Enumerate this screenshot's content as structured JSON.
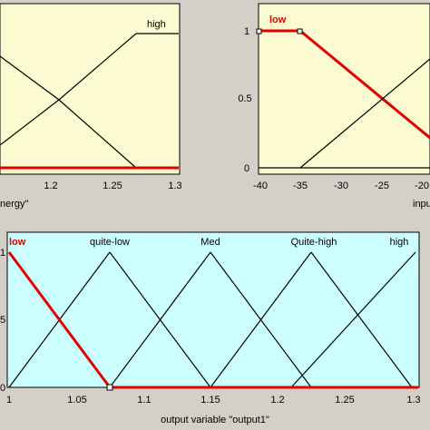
{
  "panel_top_left": {
    "mf_label_high": "high",
    "tick_labels": [
      "1.2",
      "1.25",
      "1.3"
    ],
    "axis_label": "nergy\"",
    "background": "#fcfad0"
  },
  "panel_top_right": {
    "mf_label_low": "low",
    "y_tick_labels": [
      "1",
      "0.5",
      "0"
    ],
    "x_tick_labels": [
      "-40",
      "-35",
      "-30",
      "-25",
      "-20"
    ],
    "axis_label": "inpu",
    "background": "#fcfad0"
  },
  "panel_bottom": {
    "mf_labels": [
      "low",
      "quite-low",
      "Med",
      "Quite-high",
      "high"
    ],
    "y_tick_labels": [
      "1",
      "5",
      "0"
    ],
    "x_tick_labels": [
      "1",
      "1.05",
      "1.1",
      "1.15",
      "1.2",
      "1.25",
      "1.3"
    ],
    "axis_label": "output variable \"output1\"",
    "background": "#ccffff"
  },
  "colors": {
    "highlight": "#e00000",
    "line": "#000000",
    "panel_bg": "#d4d0c8"
  }
}
